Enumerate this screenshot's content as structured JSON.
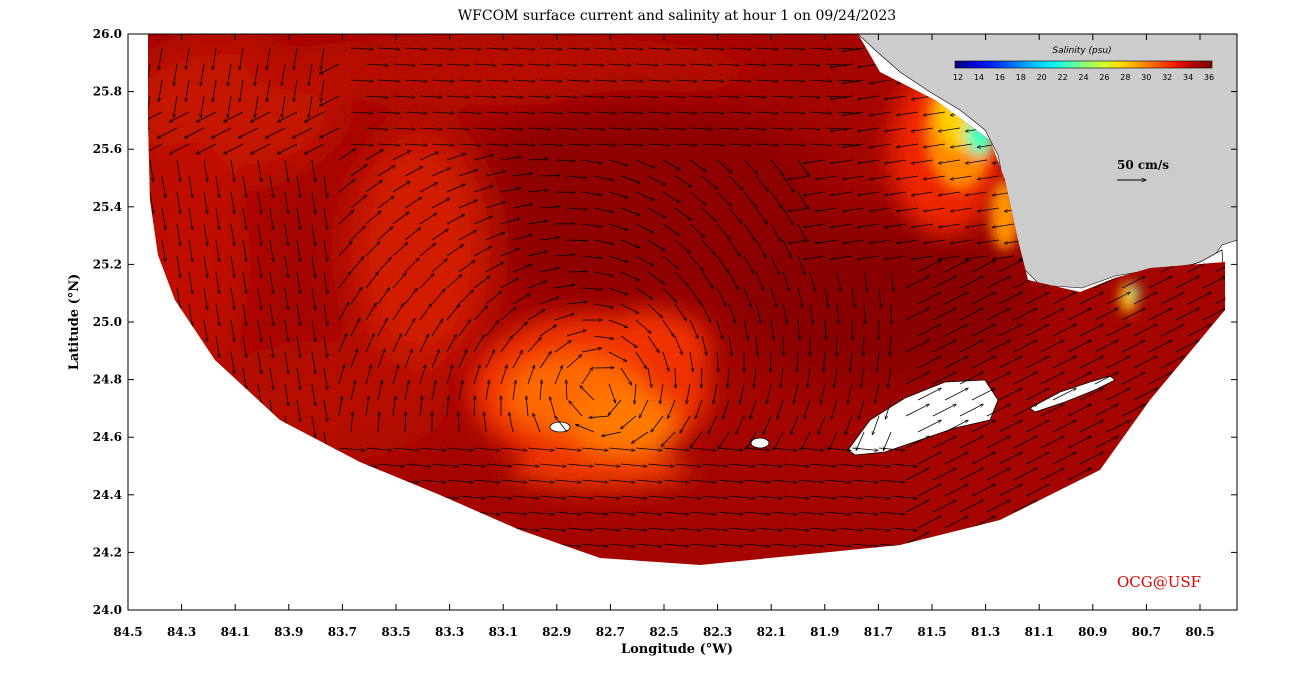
{
  "title": "WFCOM surface current and salinity at hour 1 on 09/24/2023",
  "xlabel": "Longitude (°W)",
  "ylabel": "Latitude (°N)",
  "x_ticks": [
    "84.5",
    "84.3",
    "84.1",
    "83.9",
    "83.7",
    "83.5",
    "83.3",
    "83.1",
    "82.9",
    "82.7",
    "82.5",
    "82.3",
    "82.1",
    "81.9",
    "81.7",
    "81.5",
    "81.3",
    "81.1",
    "80.9",
    "80.7",
    "80.5"
  ],
  "y_ticks": [
    "26.0",
    "25.8",
    "25.6",
    "25.4",
    "25.2",
    "25.0",
    "24.8",
    "24.6",
    "24.4",
    "24.2",
    "24.0"
  ],
  "colorbar": {
    "title": "Salinity (psu)",
    "ticks": [
      "12",
      "14",
      "16",
      "18",
      "20",
      "22",
      "24",
      "26",
      "28",
      "30",
      "32",
      "34",
      "36"
    ],
    "colors": [
      "#00007f",
      "#0000d0",
      "#0022ff",
      "#0066ff",
      "#00aaff",
      "#00e5ff",
      "#33ffcc",
      "#88ff77",
      "#ccff33",
      "#ffdd00",
      "#ffa000",
      "#ff5a00",
      "#f01800",
      "#b00000",
      "#800000"
    ]
  },
  "scale_vector_label": "50 cm/s",
  "credit": "OCG@USF",
  "colors": {
    "land": "#cccccc",
    "ocean_base": "#9b0000",
    "ocean_mid": "#c20e00",
    "ocean_warm": "#e83000",
    "low_sal_orange": "#ff7a00",
    "low_sal_yellow": "#ffe000",
    "low_sal_cyan": "#40ffc0",
    "arrow": "#000000",
    "credit": "#e00000"
  },
  "chart_data": {
    "type": "heatmap",
    "variable": "salinity",
    "units": "psu",
    "xlim": [
      84.5,
      80.4
    ],
    "ylim": [
      24.0,
      26.0
    ],
    "color_range": [
      12,
      36
    ],
    "overlay": "surface current vectors",
    "vector_scale": "50 cm/s"
  }
}
